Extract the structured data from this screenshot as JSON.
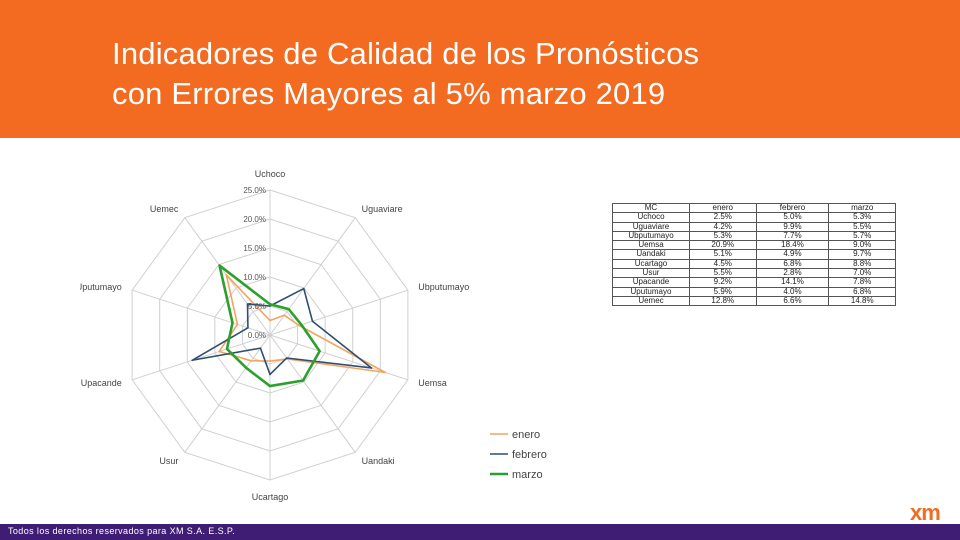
{
  "slide": {
    "title_line1": "Indicadores de Calidad de los Pronósticos",
    "title_line2": "con Errores Mayores al 5% marzo 2019",
    "footer": "Todos los derechos reservados para XM S.A. E.S.P.",
    "logo": "xm",
    "colors": {
      "header": "#f26b21",
      "footer": "#3f1d75"
    }
  },
  "chart_data": {
    "type": "radar",
    "categories": [
      "Uchoco",
      "Uguaviare",
      "Ubputumayo",
      "Uemsa",
      "Uandaki",
      "Ucartago",
      "Usur",
      "Upacande",
      "Uputumayo",
      "Uemec"
    ],
    "tick_labels": [
      "0.0%",
      "5.0%",
      "10.0%",
      "15.0%",
      "20.0%",
      "25.0%"
    ],
    "rlim": [
      0,
      25
    ],
    "grid": true,
    "legend_position": "bottom-right",
    "series": [
      {
        "name": "enero",
        "color": "#f4a460",
        "values": [
          2.5,
          4.2,
          5.3,
          20.9,
          5.1,
          4.5,
          5.5,
          9.2,
          5.9,
          12.8
        ]
      },
      {
        "name": "febrero",
        "color": "#2e4f73",
        "values": [
          5.0,
          9.9,
          7.7,
          18.4,
          4.9,
          6.8,
          2.8,
          14.1,
          4.0,
          6.6
        ]
      },
      {
        "name": "marzo",
        "color": "#2ca02c",
        "values": [
          5.3,
          5.5,
          5.7,
          9.0,
          9.7,
          8.8,
          7.0,
          7.8,
          6.8,
          14.8
        ]
      }
    ]
  },
  "table": {
    "headers": [
      "MC",
      "enero",
      "febrero",
      "marzo"
    ],
    "rows": [
      [
        "Uchoco",
        "2.5%",
        "5.0%",
        "5.3%"
      ],
      [
        "Uguaviare",
        "4.2%",
        "9.9%",
        "5.5%"
      ],
      [
        "Ubputumayo",
        "5.3%",
        "7.7%",
        "5.7%"
      ],
      [
        "Uemsa",
        "20.9%",
        "18.4%",
        "9.0%"
      ],
      [
        "Uandaki",
        "5.1%",
        "4.9%",
        "9.7%"
      ],
      [
        "Ucartago",
        "4.5%",
        "6.8%",
        "8.8%"
      ],
      [
        "Usur",
        "5.5%",
        "2.8%",
        "7.0%"
      ],
      [
        "Upacande",
        "9.2%",
        "14.1%",
        "7.8%"
      ],
      [
        "Uputumayo",
        "5.9%",
        "4.0%",
        "6.8%"
      ],
      [
        "Uemec",
        "12.8%",
        "6.6%",
        "14.8%"
      ]
    ]
  }
}
